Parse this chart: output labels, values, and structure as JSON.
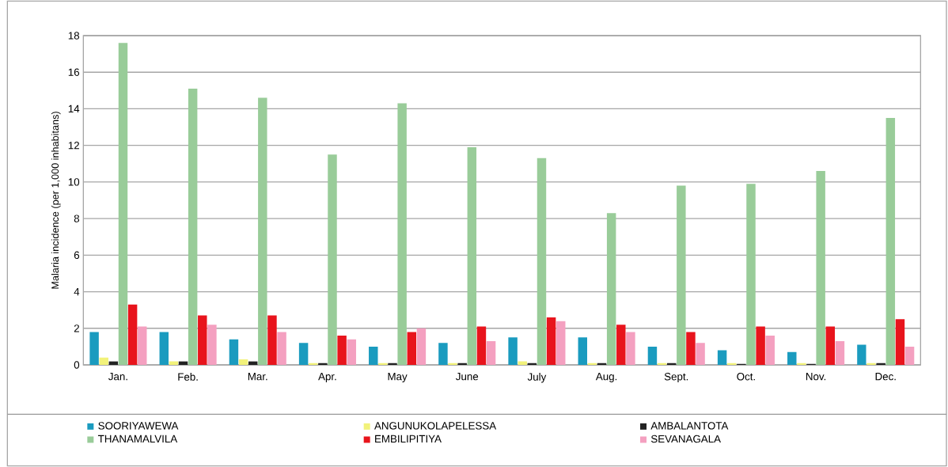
{
  "chart_data": {
    "type": "bar",
    "ylabel": "Malaria incidence (per 1,000 inhabitans)",
    "categories": [
      "Jan.",
      "Feb.",
      "Mar.",
      "Apr.",
      "May",
      "June",
      "July",
      "Aug.",
      "Sept.",
      "Oct.",
      "Nov.",
      "Dec."
    ],
    "series": [
      {
        "name": "SOORIYAWEWA",
        "color": "#1a9bbf",
        "values": [
          1.8,
          1.8,
          1.4,
          1.2,
          1.0,
          1.2,
          1.5,
          1.5,
          1.0,
          0.8,
          0.7,
          1.1
        ]
      },
      {
        "name": "ANGUNUKOLAPELESSA",
        "color": "#f2f27a",
        "values": [
          0.4,
          0.2,
          0.3,
          0.1,
          0.1,
          0.1,
          0.2,
          0.1,
          0.1,
          0.1,
          0.1,
          0.1
        ]
      },
      {
        "name": "AMBALANTOTA",
        "color": "#222222",
        "values": [
          0.2,
          0.2,
          0.2,
          0.1,
          0.1,
          0.1,
          0.1,
          0.1,
          0.1,
          0.05,
          0.05,
          0.1
        ]
      },
      {
        "name": "THANAMALVILA",
        "color": "#99cc99",
        "values": [
          17.6,
          15.1,
          14.6,
          11.5,
          14.3,
          11.9,
          11.3,
          8.3,
          9.8,
          9.9,
          10.6,
          13.5
        ]
      },
      {
        "name": "EMBILIPITIYA",
        "color": "#e8141c",
        "values": [
          3.3,
          2.7,
          2.7,
          1.6,
          1.8,
          2.1,
          2.6,
          2.2,
          1.8,
          2.1,
          2.1,
          2.5
        ]
      },
      {
        "name": "SEVANAGALA",
        "color": "#f4a0c0",
        "values": [
          2.1,
          2.2,
          1.8,
          1.4,
          2.0,
          1.3,
          2.4,
          1.8,
          1.2,
          1.6,
          1.3,
          1.0
        ]
      }
    ],
    "ylim": [
      0,
      18
    ],
    "yticks": [
      0,
      2,
      4,
      6,
      8,
      10,
      12,
      14,
      16,
      18
    ],
    "grid": "y",
    "legend": "bottom"
  }
}
